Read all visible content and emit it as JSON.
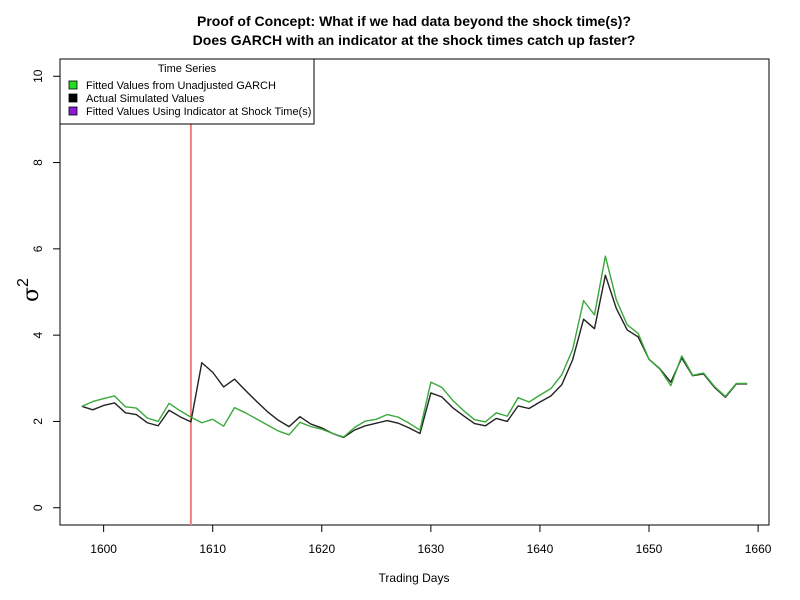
{
  "chart_data": {
    "type": "line",
    "title": "Proof of Concept: What if we had data beyond the shock time(s)?",
    "subtitle": "Does GARCH with an indicator at the shock times catch up faster?",
    "xlabel": "Trading Days",
    "ylabel": "σ",
    "ylabel_superscript": "2",
    "xlim": [
      1596,
      1661
    ],
    "ylim": [
      -0.4,
      10.4
    ],
    "x_ticks": [
      1600,
      1610,
      1620,
      1630,
      1640,
      1650,
      1660
    ],
    "y_ticks": [
      0,
      2,
      4,
      6,
      8,
      10
    ],
    "legend": {
      "title": "Time Series",
      "position": "top-left",
      "entries": [
        {
          "label": "Fitted Values from Unadjusted GARCH",
          "color": "#22dd22"
        },
        {
          "label": "Actual Simulated Values",
          "color": "#000000"
        },
        {
          "label": "Fitted Values Using Indicator at Shock Time(s)",
          "color": "#8a1ad6"
        }
      ]
    },
    "vline": {
      "x": 1608,
      "color": "#f08080"
    },
    "series": [
      {
        "name": "Actual Simulated Values",
        "color": "#222222",
        "x": [
          1598,
          1599,
          1600,
          1601,
          1602,
          1603,
          1604,
          1605,
          1606,
          1607,
          1608,
          1609,
          1610,
          1611,
          1612,
          1613,
          1614,
          1615,
          1616,
          1617,
          1618,
          1619,
          1620,
          1621,
          1622,
          1623,
          1624,
          1625,
          1626,
          1627,
          1628,
          1629,
          1630,
          1631,
          1632,
          1633,
          1634,
          1635,
          1636,
          1637,
          1638,
          1639,
          1640,
          1641,
          1642,
          1643,
          1644,
          1645,
          1646,
          1647,
          1648,
          1649,
          1650,
          1651,
          1652,
          1653,
          1654,
          1655,
          1656,
          1657,
          1658,
          1659
        ],
        "values": [
          2.35,
          2.27,
          2.37,
          2.43,
          2.2,
          2.16,
          1.97,
          1.9,
          2.26,
          2.11,
          1.99,
          3.36,
          3.14,
          2.8,
          2.98,
          2.72,
          2.47,
          2.23,
          2.03,
          1.88,
          2.11,
          1.94,
          1.85,
          1.72,
          1.63,
          1.8,
          1.9,
          1.96,
          2.02,
          1.96,
          1.85,
          1.72,
          2.66,
          2.57,
          2.32,
          2.13,
          1.95,
          1.9,
          2.07,
          2.0,
          2.36,
          2.3,
          2.45,
          2.59,
          2.85,
          3.43,
          4.37,
          4.15,
          5.39,
          4.62,
          4.12,
          3.96,
          3.44,
          3.22,
          2.91,
          3.47,
          3.06,
          3.1,
          2.79,
          2.56,
          2.87,
          2.87
        ]
      },
      {
        "name": "Fitted Values from Unadjusted GARCH",
        "color": "#3aa83a",
        "x": [
          1598,
          1599,
          1600,
          1601,
          1602,
          1603,
          1604,
          1605,
          1606,
          1607,
          1608,
          1609,
          1610,
          1611,
          1612,
          1613,
          1614,
          1615,
          1616,
          1617,
          1618,
          1619,
          1620,
          1621,
          1622,
          1623,
          1624,
          1625,
          1626,
          1627,
          1628,
          1629,
          1630,
          1631,
          1632,
          1633,
          1634,
          1635,
          1636,
          1637,
          1638,
          1639,
          1640,
          1641,
          1642,
          1643,
          1644,
          1645,
          1646,
          1647,
          1648,
          1649,
          1650,
          1651,
          1652,
          1653,
          1654,
          1655,
          1656,
          1657,
          1658,
          1659
        ],
        "values": [
          2.35,
          2.46,
          2.53,
          2.59,
          2.34,
          2.31,
          2.08,
          2.0,
          2.42,
          2.25,
          2.1,
          1.97,
          2.05,
          1.89,
          2.32,
          2.2,
          2.06,
          1.92,
          1.78,
          1.69,
          1.98,
          1.88,
          1.82,
          1.72,
          1.64,
          1.86,
          2.01,
          2.05,
          2.16,
          2.1,
          1.96,
          1.8,
          2.91,
          2.79,
          2.49,
          2.25,
          2.04,
          1.99,
          2.2,
          2.12,
          2.55,
          2.45,
          2.61,
          2.76,
          3.08,
          3.67,
          4.8,
          4.47,
          5.83,
          4.82,
          4.24,
          4.04,
          3.44,
          3.21,
          2.83,
          3.52,
          3.07,
          3.12,
          2.81,
          2.58,
          2.88,
          2.88
        ]
      }
    ]
  }
}
